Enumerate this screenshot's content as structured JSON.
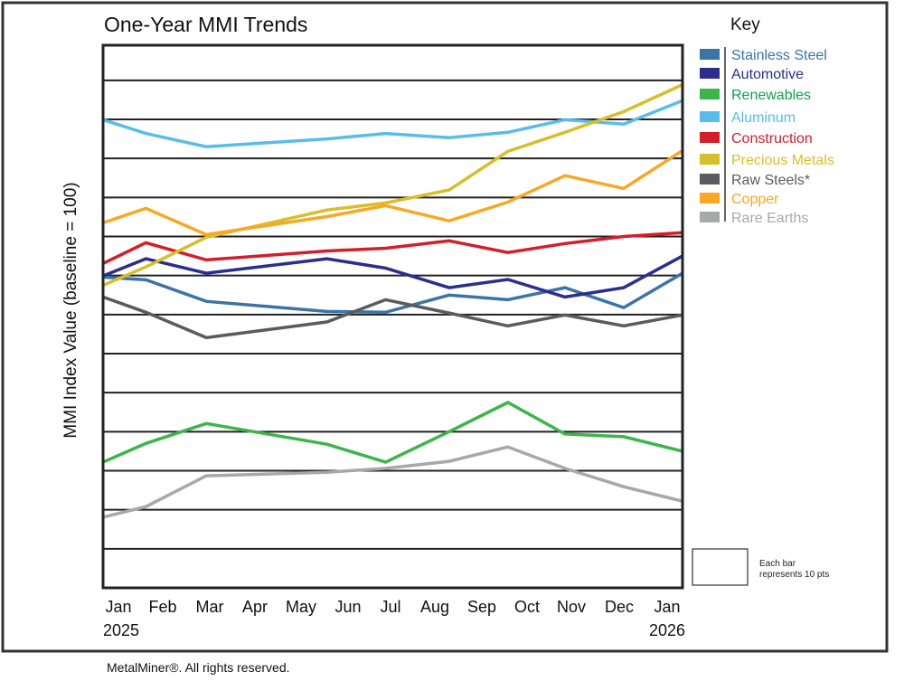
{
  "chart_data": {
    "type": "line",
    "title": "One-Year MMI Trends",
    "ylabel": "MMI Index Value (baseline = 100)",
    "xlabel": "",
    "x_ticks": [
      "Jan",
      "Feb",
      "Mar",
      "Apr",
      "May",
      "Jun",
      "Jul",
      "Aug",
      "Sep",
      "Oct",
      "Nov",
      "Dec",
      "Jan"
    ],
    "x_start_year": "2025",
    "x_end_year": "2026",
    "xlim": [
      "2025-01-01",
      "2026-01-01"
    ],
    "x": [
      "2025-01-01",
      "2025-01-28",
      "2025-03-07",
      "2025-05-22",
      "2025-06-28",
      "2025-08-07",
      "2025-09-13",
      "2025-10-19",
      "2025-11-25",
      "2026-01-01"
    ],
    "ylim": [
      0,
      139
    ],
    "y_gridline_step": 10,
    "grid": true,
    "legend_title": "Key",
    "legend_placement": "right",
    "scale_note": "Each bar represents 10 pts",
    "series": [
      {
        "name": "Stainless Steel",
        "color": "#3a74a8",
        "values": [
          79.6,
          78.9,
          73.4,
          70.8,
          70.6,
          75.0,
          73.8,
          76.9,
          71.8,
          80.6
        ]
      },
      {
        "name": "Automotive",
        "color": "#2b2e8e",
        "values": [
          79.9,
          84.3,
          80.6,
          84.3,
          81.9,
          76.9,
          79.0,
          74.5,
          76.9,
          85.0
        ]
      },
      {
        "name": "Renewables",
        "color": "#3db54a",
        "label_color": "#10a24a",
        "values": [
          32.2,
          37.0,
          42.1,
          36.8,
          32.2,
          40.0,
          47.5,
          39.4,
          38.7,
          35.0
        ]
      },
      {
        "name": "Aluminum",
        "color": "#59bdea",
        "values": [
          119.9,
          116.4,
          113.0,
          115.0,
          116.4,
          115.3,
          116.7,
          119.9,
          118.8,
          124.8
        ]
      },
      {
        "name": "Construction",
        "color": "#d31f2a",
        "values": [
          83.1,
          88.4,
          84.0,
          86.3,
          87.0,
          88.9,
          85.9,
          88.2,
          90.0,
          91.0
        ]
      },
      {
        "name": "Precious Metals",
        "color": "#d7bf2a",
        "values": [
          77.5,
          82.2,
          89.8,
          96.8,
          98.6,
          101.9,
          111.8,
          116.7,
          122.0,
          128.9
        ]
      },
      {
        "name": "Raw Steels*",
        "color": "#5a5b5d",
        "values": [
          74.5,
          70.6,
          64.1,
          68.1,
          73.8,
          70.4,
          67.1,
          69.9,
          67.1,
          69.9
        ]
      },
      {
        "name": "Copper",
        "color": "#f8a824",
        "values": [
          93.5,
          97.2,
          90.5,
          95.1,
          97.9,
          94.0,
          98.8,
          105.6,
          102.3,
          112.0
        ]
      },
      {
        "name": "Rare Earths",
        "color": "#a7a8aa",
        "values": [
          18.1,
          20.8,
          28.7,
          29.6,
          30.6,
          32.4,
          36.1,
          30.6,
          25.9,
          22.2
        ]
      }
    ]
  },
  "footer": {
    "copyright": "MetalMiner®. All rights reserved."
  }
}
